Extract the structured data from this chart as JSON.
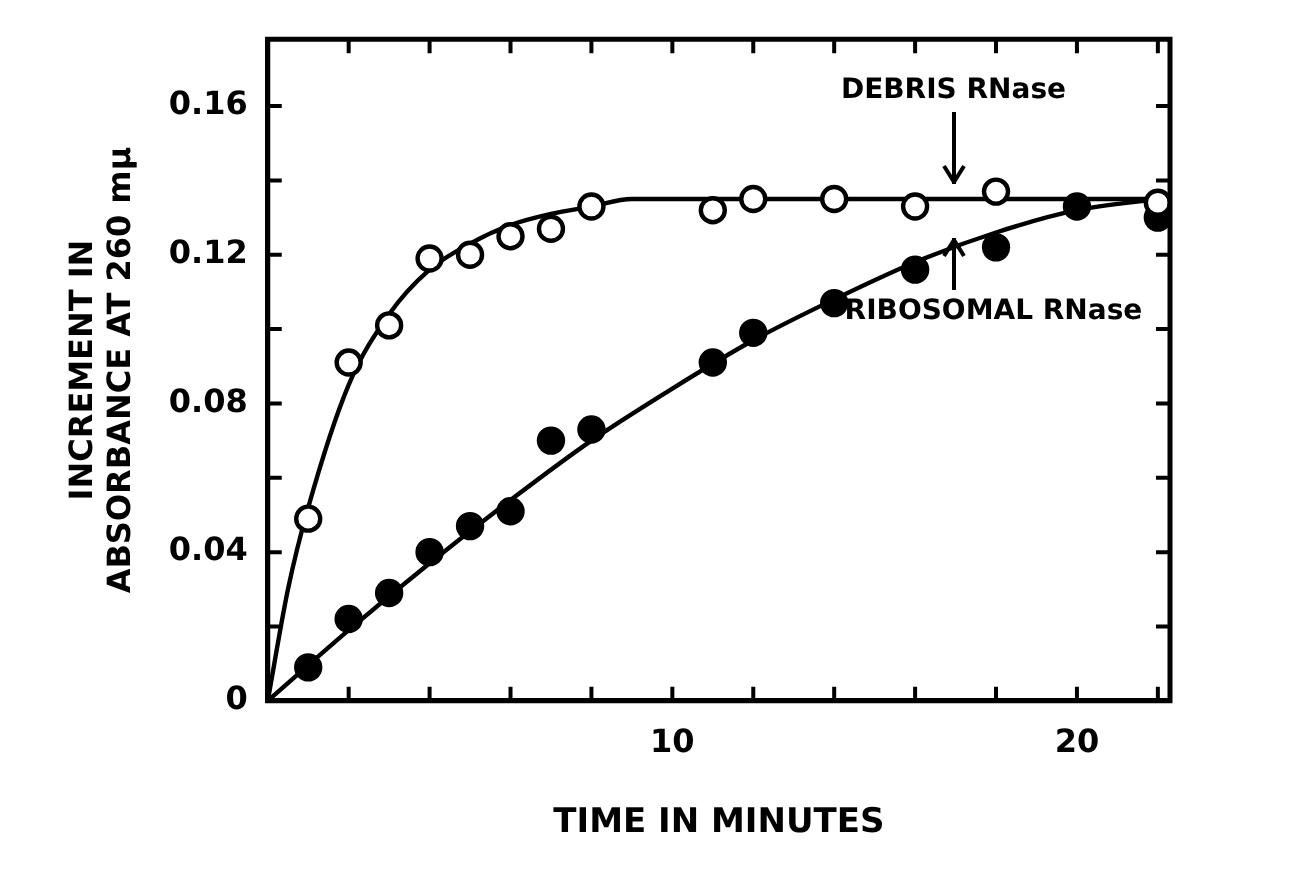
{
  "chart_data": {
    "type": "scatter",
    "xlabel": "TIME IN MINUTES",
    "ylabel": "INCREMENT IN ABSORBANCE AT 260 mμ",
    "xlim": [
      0,
      22.3
    ],
    "ylim": [
      0,
      0.178
    ],
    "xticks": [
      {
        "value": 0,
        "label": null
      },
      {
        "value": 2,
        "label": null
      },
      {
        "value": 4,
        "label": null
      },
      {
        "value": 6,
        "label": null
      },
      {
        "value": 8,
        "label": null
      },
      10,
      {
        "value": 12,
        "label": null
      },
      {
        "value": 14,
        "label": null
      },
      {
        "value": 16,
        "label": null
      },
      {
        "value": 18,
        "label": null
      },
      20,
      {
        "value": 22,
        "label": null
      }
    ],
    "yticks": [
      0,
      {
        "value": 0.02,
        "label": null
      },
      0.04,
      {
        "value": 0.06,
        "label": null
      },
      0.08,
      {
        "value": 0.1,
        "label": null
      },
      0.12,
      {
        "value": 0.14,
        "label": null
      },
      0.16
    ],
    "grid": false,
    "legend": "top right",
    "series": [
      {
        "name": "DEBRIS RNase",
        "marker": "circle",
        "color": "#ffffff",
        "x": [
          1,
          2,
          3,
          4,
          5,
          6,
          7,
          8,
          11,
          12,
          14,
          16,
          18,
          22
        ],
        "values": [
          0.049,
          0.091,
          0.101,
          0.119,
          0.12,
          0.125,
          0.127,
          0.133,
          0.132,
          0.135,
          0.135,
          0.133,
          0.137,
          0.134
        ]
      },
      {
        "name": "RIBOSOMAL RNase",
        "marker": "circle",
        "color": "#000000",
        "x": [
          1,
          2,
          3,
          4,
          5,
          6,
          7,
          8,
          11,
          12,
          14,
          16,
          18,
          20,
          22
        ],
        "values": [
          0.009,
          0.022,
          0.029,
          0.04,
          0.047,
          0.051,
          0.07,
          0.073,
          0.091,
          0.099,
          0.107,
          0.116,
          0.122,
          0.133,
          0.13
        ]
      },
      {
        "type": "line",
        "marker": "none",
        "color": "#000000",
        "x": [
          0,
          0.5,
          1,
          2,
          3,
          4,
          5,
          6,
          7,
          8,
          9,
          22.3
        ],
        "values": [
          0,
          0.03,
          0.052,
          0.085,
          0.104,
          0.116,
          0.123,
          0.128,
          0.131,
          0.133,
          0.135,
          0.135
        ]
      },
      {
        "type": "line",
        "marker": "none",
        "color": "#000000",
        "x": [
          0,
          2,
          4,
          6,
          8,
          10,
          12,
          14,
          16,
          18,
          20,
          22
        ],
        "values": [
          0,
          0.019,
          0.037,
          0.054,
          0.07,
          0.084,
          0.097,
          0.108,
          0.118,
          0.126,
          0.132,
          0.135
        ]
      }
    ]
  }
}
